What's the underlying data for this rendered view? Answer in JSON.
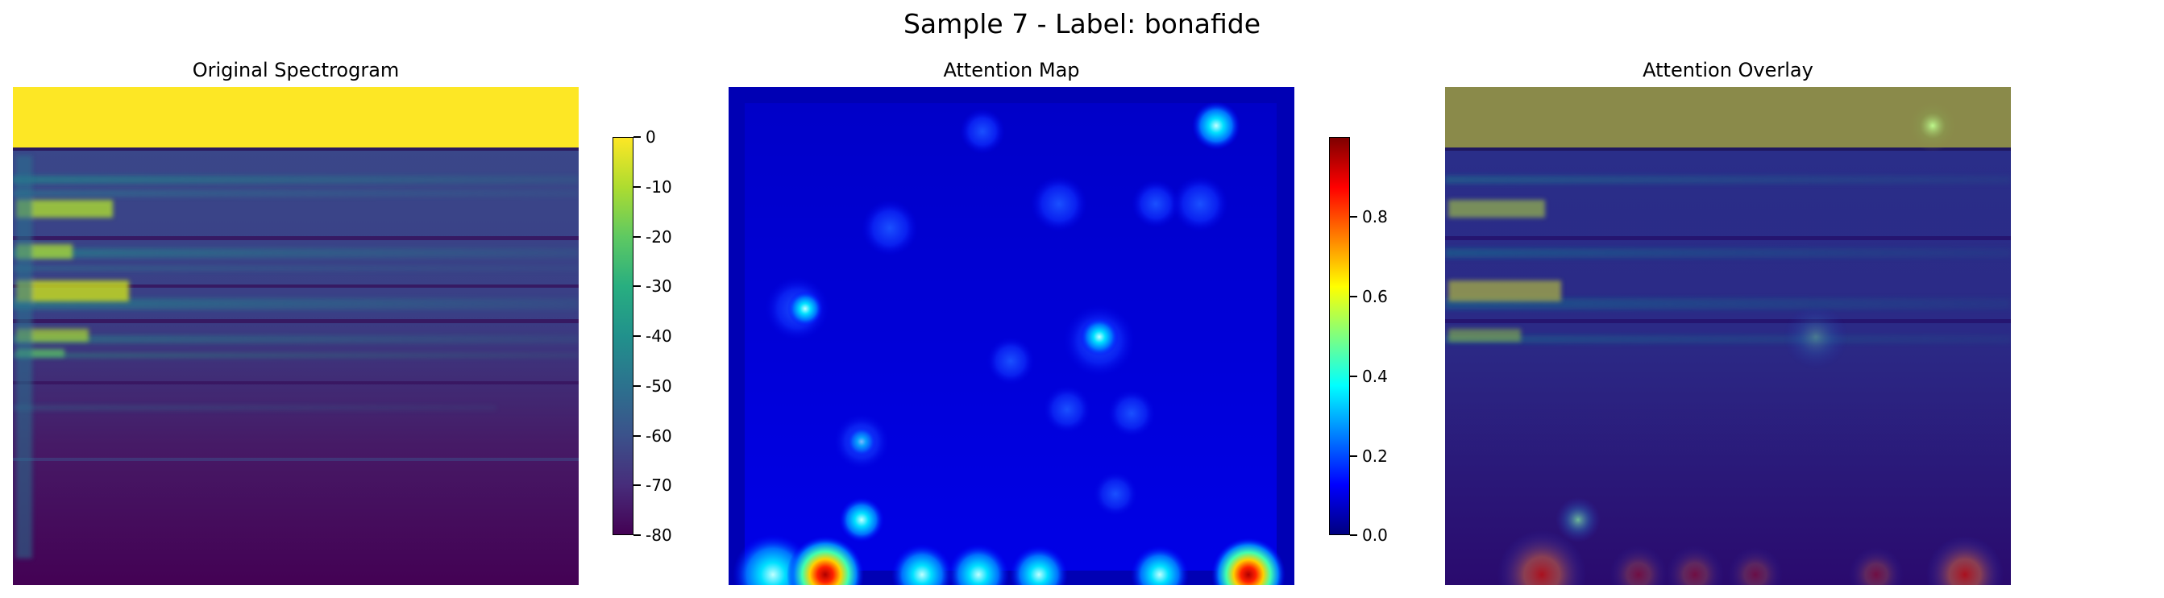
{
  "figure": {
    "title": "Sample 7 - Label: bonafide"
  },
  "panels": [
    {
      "title": "Original Spectrogram"
    },
    {
      "title": "Attention Map"
    },
    {
      "title": "Attention Overlay"
    }
  ],
  "colors": {
    "viridis": [
      "#440154",
      "#472d7b",
      "#3b528b",
      "#2c728e",
      "#21918c",
      "#28ae80",
      "#5ec962",
      "#addc30",
      "#fde725"
    ],
    "jet": [
      "#00007f",
      "#0000ff",
      "#007fff",
      "#00ffff",
      "#7fff7f",
      "#ffff00",
      "#ff7f00",
      "#ff0000",
      "#7f0000"
    ]
  },
  "chart_data": [
    {
      "type": "heatmap",
      "title": "Original Spectrogram",
      "colormap": "viridis",
      "axes_visible": false,
      "colorbar": {
        "range": [
          -80,
          0
        ],
        "ticks": [
          "0",
          "-10",
          "-20",
          "-30",
          "-40",
          "-50",
          "-60",
          "-70",
          "-80"
        ]
      }
    },
    {
      "type": "heatmap",
      "title": "Attention Map",
      "colormap": "jet",
      "axes_visible": false,
      "colorbar": {
        "range": [
          0,
          1
        ],
        "ticks": [
          "0.8",
          "0.6",
          "0.4",
          "0.2",
          "0.0"
        ]
      }
    },
    {
      "type": "heatmap",
      "title": "Attention Overlay",
      "colormap": "jet over viridis",
      "axes_visible": false
    }
  ]
}
